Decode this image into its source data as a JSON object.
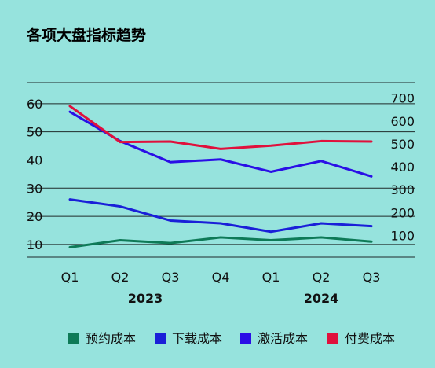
{
  "chart_data": {
    "type": "line",
    "title": "各项大盘指标趋势",
    "categories": [
      "Q1",
      "Q2",
      "Q3",
      "Q4",
      "Q1",
      "Q2",
      "Q3"
    ],
    "year_groups": [
      {
        "label": "2023",
        "start": 0,
        "end": 3
      },
      {
        "label": "2024",
        "start": 4,
        "end": 6
      }
    ],
    "left_axis": {
      "ticks": [
        10,
        20,
        30,
        40,
        50,
        60
      ],
      "min": 5.5,
      "max": 67.5
    },
    "right_axis": {
      "ticks": [
        100,
        200,
        300,
        400,
        500,
        600,
        700
      ],
      "min": 5.5,
      "max": 767.5
    },
    "grid": true,
    "legend_position": "bottom",
    "series": [
      {
        "name": "预约成本",
        "axis": "left",
        "color": "#0E7A57",
        "values": [
          9,
          11.5,
          10.5,
          12.5,
          11.5,
          12.5,
          11
        ]
      },
      {
        "name": "下载成本",
        "axis": "left",
        "color": "#1A1FD8",
        "values": [
          26,
          23.5,
          18.5,
          17.5,
          14.5,
          17.5,
          16.5
        ]
      },
      {
        "name": "激活成本",
        "axis": "right",
        "color": "#2A0FE6",
        "values": [
          640,
          512,
          420,
          432,
          378,
          425,
          358
        ]
      },
      {
        "name": "付费成本",
        "axis": "right",
        "color": "#E0103C",
        "values": [
          665,
          508,
          510,
          478,
          492,
          512,
          510
        ]
      }
    ]
  }
}
